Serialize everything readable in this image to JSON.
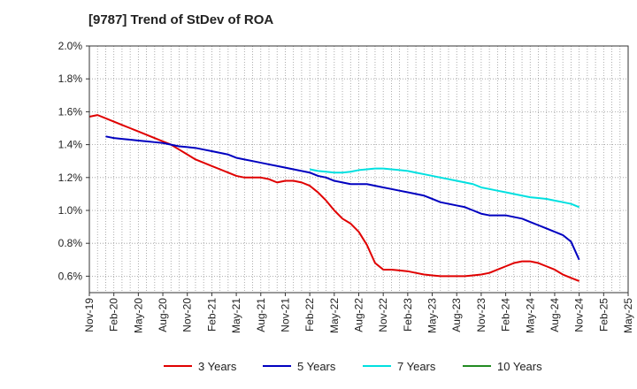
{
  "chart_data": {
    "type": "line",
    "title": "[9787]  Trend of StDev of ROA",
    "xlabel": "",
    "ylabel": "",
    "x_ticks": [
      "Nov-19",
      "Feb-20",
      "May-20",
      "Aug-20",
      "Nov-20",
      "Feb-21",
      "May-21",
      "Aug-21",
      "Nov-21",
      "Feb-22",
      "May-22",
      "Aug-22",
      "Nov-22",
      "Feb-23",
      "May-23",
      "Aug-23",
      "Nov-23",
      "Feb-24",
      "May-24",
      "Aug-24",
      "Nov-24",
      "Feb-25",
      "May-25"
    ],
    "y_ticks": [
      "0.6%",
      "0.8%",
      "1.0%",
      "1.2%",
      "1.4%",
      "1.6%",
      "1.8%",
      "2.0%"
    ],
    "ylim": [
      0.5,
      2.0
    ],
    "y_unit": "%",
    "grid": true,
    "legend_position": "bottom",
    "series": [
      {
        "name": "3 Years",
        "color": "#e00000",
        "points": [
          [
            "Nov-19",
            1.57
          ],
          [
            "Dec-19",
            1.58
          ],
          [
            "Jan-20",
            1.56
          ],
          [
            "Feb-20",
            1.54
          ],
          [
            "Mar-20",
            1.52
          ],
          [
            "Apr-20",
            1.5
          ],
          [
            "May-20",
            1.48
          ],
          [
            "Jun-20",
            1.46
          ],
          [
            "Jul-20",
            1.44
          ],
          [
            "Aug-20",
            1.42
          ],
          [
            "Sep-20",
            1.4
          ],
          [
            "Oct-20",
            1.37
          ],
          [
            "Nov-20",
            1.34
          ],
          [
            "Dec-20",
            1.31
          ],
          [
            "Jan-21",
            1.29
          ],
          [
            "Feb-21",
            1.27
          ],
          [
            "Mar-21",
            1.25
          ],
          [
            "Apr-21",
            1.23
          ],
          [
            "May-21",
            1.21
          ],
          [
            "Jun-21",
            1.2
          ],
          [
            "Jul-21",
            1.2
          ],
          [
            "Aug-21",
            1.2
          ],
          [
            "Sep-21",
            1.19
          ],
          [
            "Oct-21",
            1.17
          ],
          [
            "Nov-21",
            1.18
          ],
          [
            "Dec-21",
            1.18
          ],
          [
            "Jan-22",
            1.17
          ],
          [
            "Feb-22",
            1.15
          ],
          [
            "Mar-22",
            1.11
          ],
          [
            "Apr-22",
            1.06
          ],
          [
            "May-22",
            1.0
          ],
          [
            "Jun-22",
            0.95
          ],
          [
            "Jul-22",
            0.92
          ],
          [
            "Aug-22",
            0.87
          ],
          [
            "Sep-22",
            0.79
          ],
          [
            "Oct-22",
            0.68
          ],
          [
            "Nov-22",
            0.64
          ],
          [
            "Dec-22",
            0.64
          ],
          [
            "Jan-23",
            0.635
          ],
          [
            "Feb-23",
            0.63
          ],
          [
            "Mar-23",
            0.62
          ],
          [
            "Apr-23",
            0.61
          ],
          [
            "May-23",
            0.605
          ],
          [
            "Jun-23",
            0.6
          ],
          [
            "Jul-23",
            0.6
          ],
          [
            "Aug-23",
            0.6
          ],
          [
            "Sep-23",
            0.6
          ],
          [
            "Oct-23",
            0.605
          ],
          [
            "Nov-23",
            0.61
          ],
          [
            "Dec-23",
            0.62
          ],
          [
            "Jan-24",
            0.64
          ],
          [
            "Feb-24",
            0.66
          ],
          [
            "Mar-24",
            0.68
          ],
          [
            "Apr-24",
            0.69
          ],
          [
            "May-24",
            0.69
          ],
          [
            "Jun-24",
            0.68
          ],
          [
            "Jul-24",
            0.66
          ],
          [
            "Aug-24",
            0.64
          ],
          [
            "Sep-24",
            0.61
          ],
          [
            "Oct-24",
            0.59
          ],
          [
            "Nov-24",
            0.57
          ]
        ]
      },
      {
        "name": "5 Years",
        "color": "#0000c0",
        "points": [
          [
            "Jan-20",
            1.45
          ],
          [
            "Feb-20",
            1.44
          ],
          [
            "Mar-20",
            1.435
          ],
          [
            "Apr-20",
            1.43
          ],
          [
            "May-20",
            1.425
          ],
          [
            "Jun-20",
            1.42
          ],
          [
            "Jul-20",
            1.415
          ],
          [
            "Aug-20",
            1.41
          ],
          [
            "Sep-20",
            1.4
          ],
          [
            "Oct-20",
            1.39
          ],
          [
            "Nov-20",
            1.385
          ],
          [
            "Dec-20",
            1.38
          ],
          [
            "Jan-21",
            1.37
          ],
          [
            "Feb-21",
            1.36
          ],
          [
            "Mar-21",
            1.35
          ],
          [
            "Apr-21",
            1.34
          ],
          [
            "May-21",
            1.32
          ],
          [
            "Jun-21",
            1.31
          ],
          [
            "Jul-21",
            1.3
          ],
          [
            "Aug-21",
            1.29
          ],
          [
            "Sep-21",
            1.28
          ],
          [
            "Oct-21",
            1.27
          ],
          [
            "Nov-21",
            1.26
          ],
          [
            "Dec-21",
            1.25
          ],
          [
            "Jan-22",
            1.24
          ],
          [
            "Feb-22",
            1.23
          ],
          [
            "Mar-22",
            1.21
          ],
          [
            "Apr-22",
            1.2
          ],
          [
            "May-22",
            1.18
          ],
          [
            "Jun-22",
            1.17
          ],
          [
            "Jul-22",
            1.16
          ],
          [
            "Aug-22",
            1.16
          ],
          [
            "Sep-22",
            1.16
          ],
          [
            "Oct-22",
            1.15
          ],
          [
            "Nov-22",
            1.14
          ],
          [
            "Dec-22",
            1.13
          ],
          [
            "Jan-23",
            1.12
          ],
          [
            "Feb-23",
            1.11
          ],
          [
            "Mar-23",
            1.1
          ],
          [
            "Apr-23",
            1.09
          ],
          [
            "May-23",
            1.07
          ],
          [
            "Jun-23",
            1.05
          ],
          [
            "Jul-23",
            1.04
          ],
          [
            "Aug-23",
            1.03
          ],
          [
            "Sep-23",
            1.02
          ],
          [
            "Oct-23",
            1.0
          ],
          [
            "Nov-23",
            0.98
          ],
          [
            "Dec-23",
            0.97
          ],
          [
            "Jan-24",
            0.97
          ],
          [
            "Feb-24",
            0.97
          ],
          [
            "Mar-24",
            0.96
          ],
          [
            "Apr-24",
            0.95
          ],
          [
            "May-24",
            0.93
          ],
          [
            "Jun-24",
            0.91
          ],
          [
            "Jul-24",
            0.89
          ],
          [
            "Aug-24",
            0.87
          ],
          [
            "Sep-24",
            0.85
          ],
          [
            "Oct-24",
            0.81
          ],
          [
            "Nov-24",
            0.7
          ]
        ]
      },
      {
        "name": "7 Years",
        "color": "#00e0e0",
        "points": [
          [
            "Feb-22",
            1.25
          ],
          [
            "Mar-22",
            1.24
          ],
          [
            "Apr-22",
            1.235
          ],
          [
            "May-22",
            1.23
          ],
          [
            "Jun-22",
            1.23
          ],
          [
            "Jul-22",
            1.235
          ],
          [
            "Aug-22",
            1.245
          ],
          [
            "Sep-22",
            1.25
          ],
          [
            "Oct-22",
            1.255
          ],
          [
            "Nov-22",
            1.255
          ],
          [
            "Dec-22",
            1.25
          ],
          [
            "Jan-23",
            1.245
          ],
          [
            "Feb-23",
            1.24
          ],
          [
            "Mar-23",
            1.23
          ],
          [
            "Apr-23",
            1.22
          ],
          [
            "May-23",
            1.21
          ],
          [
            "Jun-23",
            1.2
          ],
          [
            "Jul-23",
            1.19
          ],
          [
            "Aug-23",
            1.18
          ],
          [
            "Sep-23",
            1.17
          ],
          [
            "Oct-23",
            1.16
          ],
          [
            "Nov-23",
            1.14
          ],
          [
            "Dec-23",
            1.13
          ],
          [
            "Jan-24",
            1.12
          ],
          [
            "Feb-24",
            1.11
          ],
          [
            "Mar-24",
            1.1
          ],
          [
            "Apr-24",
            1.09
          ],
          [
            "May-24",
            1.08
          ],
          [
            "Jun-24",
            1.075
          ],
          [
            "Jul-24",
            1.07
          ],
          [
            "Aug-24",
            1.06
          ],
          [
            "Sep-24",
            1.05
          ],
          [
            "Oct-24",
            1.04
          ],
          [
            "Nov-24",
            1.02
          ]
        ]
      },
      {
        "name": "10 Years",
        "color": "#228b22",
        "points": []
      }
    ]
  }
}
